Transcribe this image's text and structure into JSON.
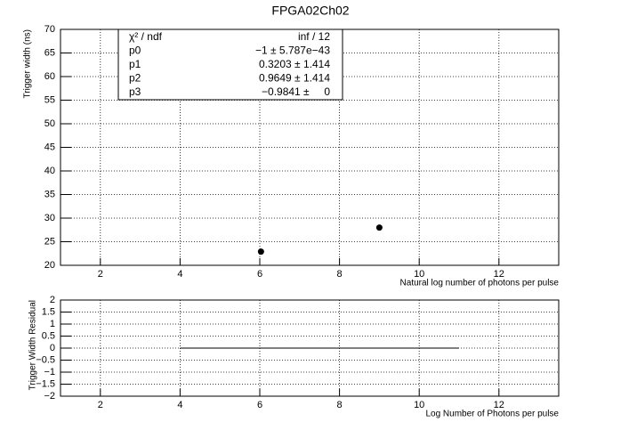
{
  "chart_data": [
    {
      "type": "scatter",
      "title": "FPGA02Ch02",
      "x_label": "Natural log number of photons per pulse",
      "y_label": "Trigger width (ns)",
      "x": [
        6.03,
        9.0
      ],
      "values": [
        22.9,
        28.0
      ],
      "color": "#000000",
      "xlim": [
        1,
        13.5
      ],
      "xticks": [
        2,
        4,
        6,
        8,
        10,
        12
      ],
      "ylim": [
        20,
        70
      ],
      "yticks": [
        20,
        25,
        30,
        35,
        40,
        45,
        50,
        55,
        60,
        65,
        70
      ],
      "grid": true,
      "stats": {
        "rows": [
          [
            "χ² / ndf",
            "inf / 12"
          ],
          [
            "p0",
            "−1 ± 5.787e−43"
          ],
          [
            "p1",
            "0.3203 ± 1.414"
          ],
          [
            "p2",
            "0.9649 ± 1.414"
          ],
          [
            "p3",
            "−0.9841 ±     0"
          ]
        ]
      }
    },
    {
      "type": "line",
      "x_label": "Log Number of Photons per pulse",
      "y_label": "Trigger Width Residual",
      "x": [
        4,
        11
      ],
      "values": [
        0,
        0
      ],
      "color": "#000000",
      "xlim": [
        1,
        13.5
      ],
      "xticks": [
        2,
        4,
        6,
        8,
        10,
        12
      ],
      "ylim": [
        -2,
        2
      ],
      "yticks": [
        {
          "value": -2,
          "label": "−2"
        },
        {
          "value": -1.5,
          "label": "−1.5"
        },
        {
          "value": -1,
          "label": "−1"
        },
        {
          "value": -0.5,
          "label": "−0.5"
        },
        0,
        0.5,
        1,
        1.5,
        2
      ],
      "grid": true
    }
  ]
}
